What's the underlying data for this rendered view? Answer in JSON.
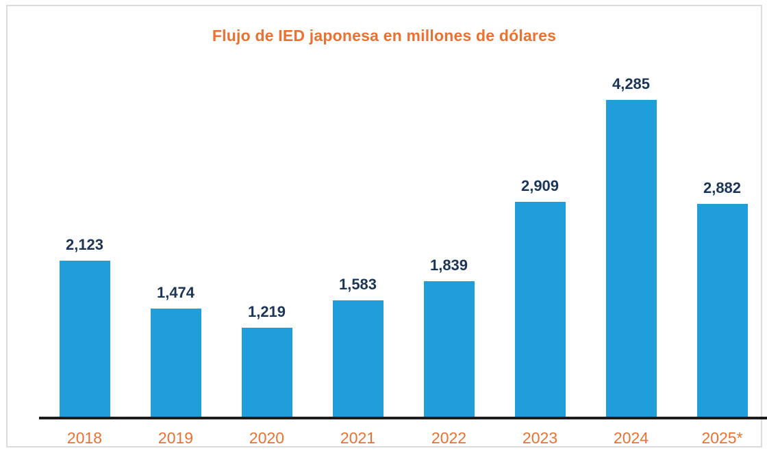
{
  "chart_data": {
    "type": "bar",
    "title": "Flujo de IED japonesa en millones de dólares",
    "categories": [
      "2018",
      "2019",
      "2020",
      "2021",
      "2022",
      "2023",
      "2024",
      "2025*"
    ],
    "values": [
      2123,
      1474,
      1219,
      1583,
      1839,
      2909,
      4285,
      2882
    ],
    "value_labels": [
      "2,123",
      "1,474",
      "1,219",
      "1,583",
      "1,839",
      "2,909",
      "4,285",
      "2,882"
    ],
    "xlabel": "",
    "ylabel": "",
    "y_axis_visible": false,
    "gridlines": false,
    "legend": false,
    "data_labels_position": "above-bar",
    "colors": {
      "bar": "#1f9edb",
      "title": "#e97132",
      "tick_label": "#e97132",
      "value_label": "#1b3557",
      "axis_line": "#1c1c1c",
      "frame_border": "#dbdbdb",
      "background": "#ffffff"
    }
  }
}
